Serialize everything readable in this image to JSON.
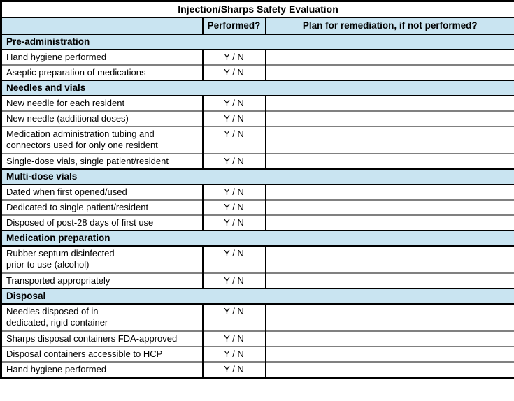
{
  "title": "Injection/Sharps Safety Evaluation",
  "header": {
    "item_col": "",
    "performed_col": "Performed?",
    "remediation_col": "Plan for remediation, if not performed?"
  },
  "colors": {
    "section_header_bg": "#c9e4f1",
    "table_border": "#000000",
    "row_divider": "#808080"
  },
  "sections": [
    {
      "label": "Pre-administration",
      "rows": [
        {
          "label": "Hand hygiene performed",
          "performed": "Y / N",
          "remediation": ""
        },
        {
          "label": "Aseptic preparation of medications",
          "performed": "Y / N",
          "remediation": ""
        }
      ]
    },
    {
      "label": "Needles and vials",
      "rows": [
        {
          "label": "New needle for each resident",
          "performed": "Y / N",
          "remediation": ""
        },
        {
          "label": "New needle (additional doses)",
          "performed": "Y / N",
          "remediation": ""
        },
        {
          "label": "Medication administration tubing and\nconnectors used for only one resident",
          "performed": "Y / N",
          "remediation": ""
        },
        {
          "label": "Single-dose vials, single patient/resident",
          "performed": "Y / N",
          "remediation": ""
        }
      ]
    },
    {
      "label": "Multi-dose vials",
      "rows": [
        {
          "label": "Dated when first opened/used",
          "performed": "Y / N",
          "remediation": ""
        },
        {
          "label": "Dedicated to single patient/resident",
          "performed": "Y / N",
          "remediation": ""
        },
        {
          "label": "Disposed of post-28 days of first use",
          "performed": "Y / N",
          "remediation": ""
        }
      ]
    },
    {
      "label": "Medication preparation",
      "rows": [
        {
          "label": "Rubber septum disinfected\nprior to use (alcohol)",
          "performed": "Y / N",
          "remediation": ""
        },
        {
          "label": "Transported appropriately",
          "performed": "Y / N",
          "remediation": ""
        }
      ]
    },
    {
      "label": "Disposal",
      "rows": [
        {
          "label": "Needles disposed of in\ndedicated, rigid container",
          "performed": "Y / N",
          "remediation": ""
        },
        {
          "label": "Sharps disposal containers FDA-approved",
          "performed": "Y / N",
          "remediation": ""
        },
        {
          "label": "Disposal containers accessible to HCP",
          "performed": "Y / N",
          "remediation": ""
        },
        {
          "label": "Hand hygiene performed",
          "performed": "Y / N",
          "remediation": ""
        }
      ]
    }
  ]
}
